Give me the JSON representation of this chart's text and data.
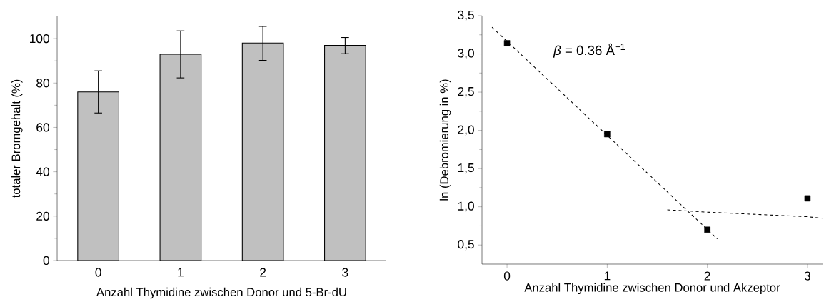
{
  "chart_data": [
    {
      "type": "bar",
      "categories": [
        "0",
        "1",
        "2",
        "3"
      ],
      "values": [
        76,
        93,
        98,
        97
      ],
      "errors": [
        [
          66.5,
          85.5
        ],
        [
          82.3,
          103.5
        ],
        [
          90.2,
          105.5
        ],
        [
          93.2,
          100.5
        ]
      ],
      "color": "#c0c0c0",
      "xlabel": "Anzahl Thymidine zwischen Donor und 5-Br-dU",
      "ylabel": "totaler Bromgehalt (%)",
      "ylim": [
        0,
        110
      ],
      "yticks": [
        0,
        20,
        40,
        60,
        80,
        100
      ]
    },
    {
      "type": "scatter",
      "xlabel": "Anzahl Thymidine zwischen Donor und Akzeptor",
      "ylabel": "ln (Debromierung in %)",
      "xlim": [
        -0.25,
        3.15
      ],
      "ylim": [
        0.25,
        3.5
      ],
      "xticks": [
        0,
        1,
        2,
        3
      ],
      "yticks": [
        {
          "value": 0.5,
          "label": "0,5"
        },
        {
          "value": 1.0,
          "label": "1,0"
        },
        {
          "value": 1.5,
          "label": "1,5"
        },
        {
          "value": 2.0,
          "label": "2,0"
        },
        {
          "value": 2.5,
          "label": "2,5"
        },
        {
          "value": 3.0,
          "label": "3,0"
        },
        {
          "value": 3.5,
          "label": "3,5"
        }
      ],
      "annotations": [
        "*β* = 0.36 Å$^{−1}$"
      ],
      "series": [
        {
          "type": "scatter",
          "x": [
            0,
            1,
            2,
            3
          ],
          "values": [
            3.14,
            1.95,
            0.7,
            1.11
          ],
          "color": "#000000",
          "marker": "square"
        },
        {
          "type": "line",
          "x": [
            -0.15,
            2.1
          ],
          "values": [
            3.35,
            0.58
          ],
          "color": "#000000",
          "marker": "none",
          "line_style": "dashed"
        },
        {
          "type": "line",
          "x": [
            1.6,
            2.0,
            2.5,
            3.0,
            3.15
          ],
          "values": [
            0.96,
            0.93,
            0.9,
            0.87,
            0.85
          ],
          "color": "#000000",
          "marker": "none",
          "line_style": "dashed"
        }
      ]
    }
  ]
}
